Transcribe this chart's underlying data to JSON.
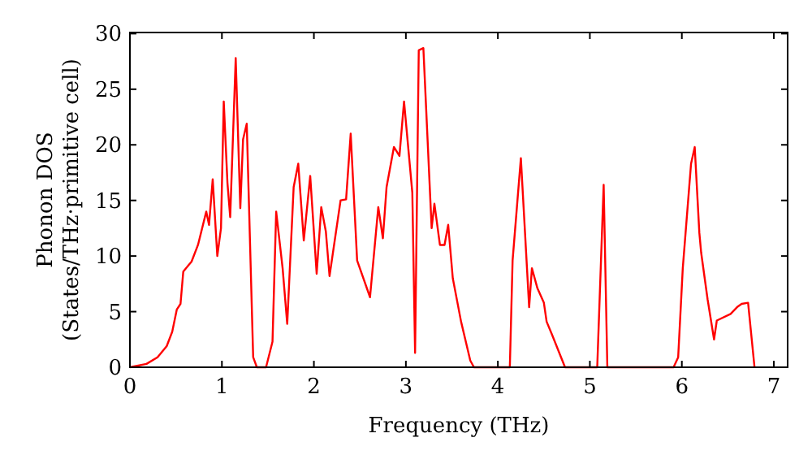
{
  "chart_data": {
    "type": "line",
    "xlabel": "Frequency (THz)",
    "ylabel": "Phonon DOS\n(States/THz·primitive cell)",
    "xlim": [
      0,
      7.15
    ],
    "ylim": [
      0,
      30.1
    ],
    "xticks": [
      0,
      1,
      2,
      3,
      4,
      5,
      6,
      7
    ],
    "yticks": [
      0,
      5,
      10,
      15,
      20,
      25,
      30
    ],
    "grid": false,
    "marker": "none",
    "line_style": "solid",
    "series": [
      {
        "color": "#ff0000",
        "x": [
          0,
          0.18,
          0.3,
          0.4,
          0.46,
          0.51,
          0.55,
          0.58,
          0.64,
          0.67,
          0.74,
          0.83,
          0.86,
          0.9,
          0.95,
          0.99,
          1.02,
          1.06,
          1.09,
          1.15,
          1.2,
          1.23,
          1.27,
          1.34,
          1.38,
          1.48,
          1.55,
          1.59,
          1.66,
          1.71,
          1.78,
          1.83,
          1.89,
          1.96,
          2.03,
          2.08,
          2.13,
          2.17,
          2.29,
          2.35,
          2.4,
          2.47,
          2.61,
          2.7,
          2.75,
          2.79,
          2.87,
          2.93,
          2.98,
          3.07,
          3.1,
          3.14,
          3.19,
          3.28,
          3.31,
          3.37,
          3.42,
          3.46,
          3.51,
          3.6,
          3.7,
          3.74,
          4.13,
          4.16,
          4.25,
          4.34,
          4.37,
          4.43,
          4.5,
          4.53,
          4.59,
          4.73,
          5.08,
          5.15,
          5.19,
          5.91,
          5.96,
          6.01,
          6.1,
          6.14,
          6.19,
          6.21,
          6.28,
          6.35,
          6.38,
          6.53,
          6.6,
          6.65,
          6.72,
          6.79
        ],
        "values": [
          0,
          0.3,
          0.9,
          1.9,
          3.2,
          5.2,
          5.7,
          8.6,
          9.2,
          9.5,
          11,
          14,
          12.8,
          16.9,
          10,
          12.5,
          23.9,
          16.6,
          13.5,
          27.8,
          14.3,
          20.5,
          21.9,
          0.9,
          0,
          0,
          2.3,
          14,
          8.9,
          3.9,
          16.2,
          18.3,
          11.4,
          17.2,
          8.4,
          14.4,
          12.2,
          8.2,
          15,
          15.1,
          21,
          9.6,
          6.3,
          14.4,
          11.6,
          16.2,
          19.8,
          19,
          23.9,
          15.7,
          1.3,
          28.5,
          28.7,
          12.5,
          14.7,
          11,
          11,
          12.8,
          8,
          4.1,
          0.6,
          0,
          0,
          9.6,
          18.8,
          5.4,
          8.9,
          7.1,
          5.8,
          4.1,
          2.9,
          0,
          0,
          16.4,
          0,
          0,
          0.9,
          8.9,
          18.3,
          19.8,
          12.1,
          10.3,
          6.1,
          2.5,
          4.2,
          4.8,
          5.4,
          5.7,
          5.8,
          0
        ]
      }
    ]
  }
}
